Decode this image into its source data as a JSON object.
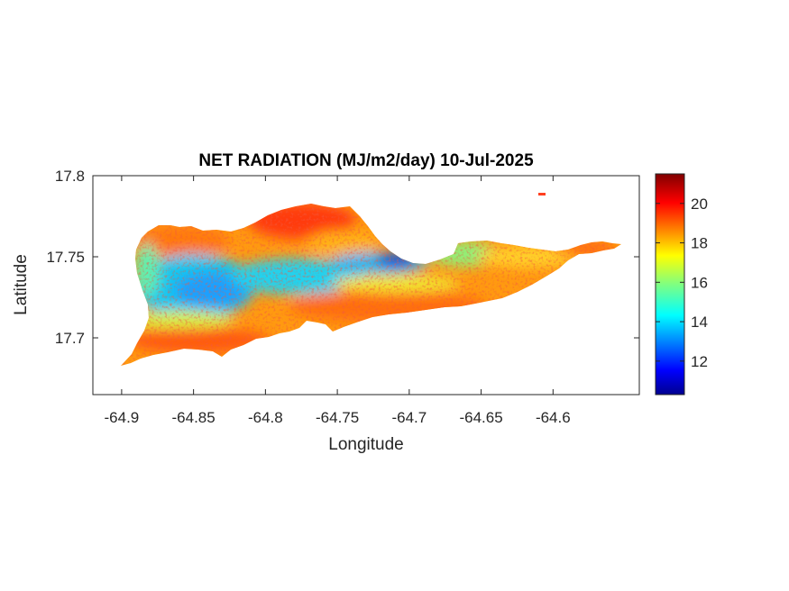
{
  "title": "NET RADIATION (MJ/m2/day) 10-Jul-2025",
  "chart_data": {
    "type": "heatmap",
    "title": "NET RADIATION (MJ/m2/day) 10-Jul-2025",
    "xlabel": "Longitude",
    "ylabel": "Latitude",
    "xlim": [
      -64.92,
      -64.54
    ],
    "ylim": [
      17.665,
      17.8
    ],
    "xticks": [
      -64.9,
      -64.85,
      -64.8,
      -64.75,
      -64.7,
      -64.65,
      -64.6
    ],
    "xtick_labels": [
      "-64.9",
      "-64.85",
      "-64.8",
      "-64.75",
      "-64.7",
      "-64.65",
      "-64.6"
    ],
    "yticks": [
      17.7,
      17.75,
      17.8
    ],
    "ytick_labels": [
      "17.7",
      "17.75",
      "17.8"
    ],
    "colormap": "jet",
    "colorbar": {
      "range": [
        10.3,
        21.5
      ],
      "ticks": [
        12,
        14,
        16,
        18,
        20
      ],
      "tick_labels": [
        "12",
        "14",
        "16",
        "18",
        "20"
      ]
    },
    "regions": [
      {
        "description": "northwest coast",
        "approx_value": 19.5
      },
      {
        "description": "western interior",
        "approx_value": 14.5
      },
      {
        "description": "central north band",
        "approx_value": 13.5
      },
      {
        "description": "north-central ridge",
        "approx_value": 12
      },
      {
        "description": "north coast near -64.79",
        "approx_value": 20.5
      },
      {
        "description": "south coast",
        "approx_value": 19
      },
      {
        "description": "eastern end",
        "approx_value": 18.5
      }
    ],
    "grid": false,
    "legend": "none"
  }
}
